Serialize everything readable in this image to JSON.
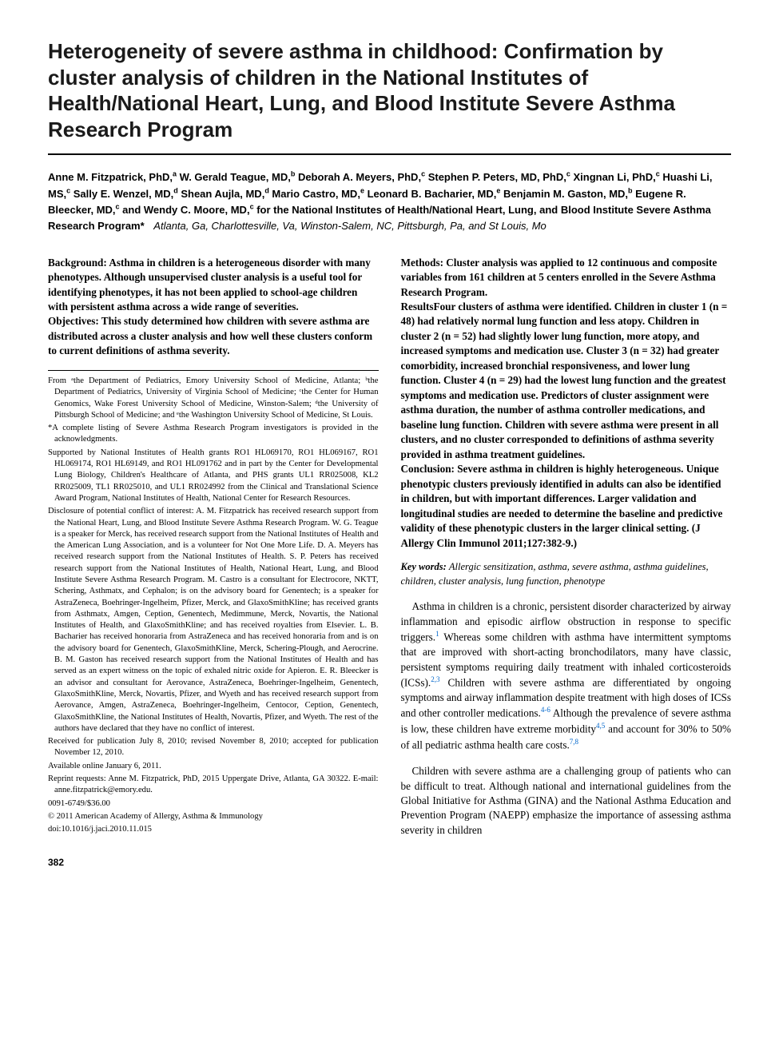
{
  "title": "Heterogeneity of severe asthma in childhood: Confirmation by cluster analysis of children in the National Institutes of Health/National Heart, Lung, and Blood Institute Severe Asthma Research Program",
  "authors_html": "Anne M. Fitzpatrick, PhD,<sup>a</sup> W. Gerald Teague, MD,<sup>b</sup> Deborah A. Meyers, PhD,<sup>c</sup> Stephen P. Peters, MD, PhD,<sup>c</sup> Xingnan Li, PhD,<sup>c</sup> Huashi Li, MS,<sup>c</sup> Sally E. Wenzel, MD,<sup>d</sup> Shean Aujla, MD,<sup>d</sup> Mario Castro, MD,<sup>e</sup> Leonard B. Bacharier, MD,<sup>e</sup> Benjamin M. Gaston, MD,<sup>b</sup> Eugene R. Bleecker, MD,<sup>c</sup> and Wendy C. Moore, MD,<sup>c</sup> for the National Institutes of Health/National Heart, Lung, and Blood Institute Severe Asthma Research Program*",
  "locations": "Atlanta, Ga, Charlottesville, Va, Winston-Salem, NC, Pittsburgh, Pa, and St Louis, Mo",
  "abstract": {
    "background": "Background: Asthma in children is a heterogeneous disorder with many phenotypes. Although unsupervised cluster analysis is a useful tool for identifying phenotypes, it has not been applied to school-age children with persistent asthma across a wide range of severities.",
    "objectives": "Objectives: This study determined how children with severe asthma are distributed across a cluster analysis and how well these clusters conform to current definitions of asthma severity.",
    "methods": "Methods: Cluster analysis was applied to 12 continuous and composite variables from 161 children at 5 centers enrolled in the Severe Asthma Research Program.",
    "results": "ResultsFour clusters of asthma were identified. Children in cluster 1 (n = 48) had relatively normal lung function and less atopy. Children in cluster 2 (n = 52) had slightly lower lung function, more atopy, and increased symptoms and medication use. Cluster 3 (n = 32) had greater comorbidity, increased bronchial responsiveness, and lower lung function. Cluster 4 (n = 29) had the lowest lung function and the greatest symptoms and medication use. Predictors of cluster assignment were asthma duration, the number of asthma controller medications, and baseline lung function. Children with severe asthma were present in all clusters, and no cluster corresponded to definitions of asthma severity provided in asthma treatment guidelines.",
    "conclusion": "Conclusion: Severe asthma in children is highly heterogeneous. Unique phenotypic clusters previously identified in adults can also be identified in children, but with important differences. Larger validation and longitudinal studies are needed to determine the baseline and predictive validity of these phenotypic clusters in the larger clinical setting. (J Allergy Clin Immunol 2011;127:382-9.)"
  },
  "keywords_label": "Key words:",
  "keywords": "Allergic sensitization, asthma, severe asthma, asthma guidelines, children, cluster analysis, lung function, phenotype",
  "footnotes": {
    "affiliations": "From ᵃthe Department of Pediatrics, Emory University School of Medicine, Atlanta; ᵇthe Department of Pediatrics, University of Virginia School of Medicine; ᶜthe Center for Human Genomics, Wake Forest University School of Medicine, Winston-Salem; ᵈthe University of Pittsburgh School of Medicine; and ᵉthe Washington University School of Medicine, St Louis.",
    "listing": "*A complete listing of Severe Asthma Research Program investigators is provided in the acknowledgments.",
    "support": "Supported by National Institutes of Health grants RO1 HL069170, RO1 HL069167, RO1 HL069174, RO1 HL69149, and RO1 HL091762 and in part by the Center for Developmental Lung Biology, Children's Healthcare of Atlanta, and PHS grants UL1 RR025008, KL2 RR025009, TL1 RR025010, and UL1 RR024992 from the Clinical and Translational Science Award Program, National Institutes of Health, National Center for Research Resources.",
    "disclosure": "Disclosure of potential conflict of interest: A. M. Fitzpatrick has received research support from the National Heart, Lung, and Blood Institute Severe Asthma Research Program. W. G. Teague is a speaker for Merck, has received research support from the National Institutes of Health and the American Lung Association, and is a volunteer for Not One More Life. D. A. Meyers has received research support from the National Institutes of Health. S. P. Peters has received research support from the National Institutes of Health, National Heart, Lung, and Blood Institute Severe Asthma Research Program. M. Castro is a consultant for Electrocore, NKTT, Schering, Asthmatx, and Cephalon; is on the advisory board for Genentech; is a speaker for AstraZeneca, Boehringer-Ingelheim, Pfizer, Merck, and GlaxoSmithKline; has received grants from Asthmatx, Amgen, Ception, Genentech, Medimmune, Merck, Novartis, the National Institutes of Health, and GlaxoSmithKline; and has received royalties from Elsevier. L. B. Bacharier has received honoraria from AstraZeneca and has received honoraria from and is on the advisory board for Genentech, GlaxoSmithKline, Merck, Schering-Plough, and Aerocrine. B. M. Gaston has received research support from the National Institutes of Health and has served as an expert witness on the topic of exhaled nitric oxide for Apieron. E. R. Bleecker is an advisor and consultant for Aerovance, AstraZeneca, Boehringer-Ingelheim, Genentech, GlaxoSmithKline, Merck, Novartis, Pfizer, and Wyeth and has received research support from Aerovance, Amgen, AstraZeneca, Boehringer-Ingelheim, Centocor, Ception, Genentech, GlaxoSmithKline, the National Institutes of Health, Novartis, Pfizer, and Wyeth. The rest of the authors have declared that they have no conflict of interest.",
    "received": "Received for publication July 8, 2010; revised November 8, 2010; accepted for publication November 12, 2010.",
    "available": "Available online January 6, 2011.",
    "reprints": "Reprint requests: Anne M. Fitzpatrick, PhD, 2015 Uppergate Drive, Atlanta, GA 30322. E-mail: anne.fitzpatrick@emory.edu.",
    "issn": "0091-6749/$36.00",
    "copyright": "© 2011 American Academy of Allergy, Asthma & Immunology",
    "doi": "doi:10.1016/j.jaci.2010.11.015"
  },
  "body": {
    "p1_pre": "Asthma in children is a chronic, persistent disorder characterized by airway inflammation and episodic airflow obstruction in response to specific triggers.",
    "p1_ref1": "1",
    "p1_mid": " Whereas some children with asthma have intermittent symptoms that are improved with short-acting bronchodilators, many have classic, persistent symptoms requiring daily treatment with inhaled corticosteroids (ICSs).",
    "p1_ref2": "2,3",
    "p1_mid2": " Children with severe asthma are differentiated by ongoing symptoms and airway inflammation despite treatment with high doses of ICSs and other controller medications.",
    "p1_ref3": "4-6",
    "p1_mid3": " Although the prevalence of severe asthma is low, these children have extreme morbidity",
    "p1_ref4": "4,5",
    "p1_mid4": " and account for 30% to 50% of all pediatric asthma health care costs.",
    "p1_ref5": "7,8",
    "p2": "Children with severe asthma are a challenging group of patients who can be difficult to treat. Although national and international guidelines from the Global Initiative for Asthma (GINA) and the National Asthma Education and Prevention Program (NAEPP) emphasize the importance of assessing asthma severity in children"
  },
  "page_number": "382"
}
